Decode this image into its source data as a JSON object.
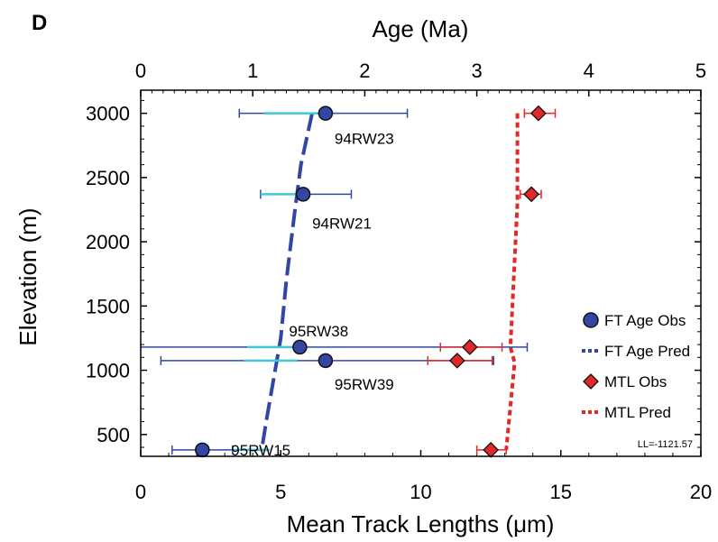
{
  "chart_data": {
    "type": "scatter",
    "panel_label": "D",
    "top_axis": {
      "label": "Age (Ma)",
      "range": [
        0,
        5
      ],
      "ticks": [
        0,
        1,
        2,
        3,
        4,
        5
      ]
    },
    "bottom_axis": {
      "label": "Mean Track Lengths (μm)",
      "range": [
        0,
        20
      ],
      "ticks": [
        0,
        5,
        10,
        15,
        20
      ]
    },
    "y_axis": {
      "label": "Elevation (m)",
      "range": [
        330,
        3180
      ],
      "ticks": [
        500,
        1000,
        1500,
        2000,
        2500,
        3000
      ]
    },
    "samples": [
      {
        "name": "94RW23",
        "elevation": 3000
      },
      {
        "name": "94RW21",
        "elevation": 2370
      },
      {
        "name": "95RW38",
        "elevation": 1180
      },
      {
        "name": "95RW39",
        "elevation": 1075
      },
      {
        "name": "95RW15",
        "elevation": 380
      }
    ],
    "series": [
      {
        "name": "FT Age Obs",
        "axis": "top",
        "color": "#3346a3",
        "marker": "circle",
        "points": [
          {
            "age": 1.65,
            "elevation": 3000,
            "err_min": 0.88,
            "err_max": 2.38,
            "inner_min": 1.1,
            "inner_max": 1.58
          },
          {
            "age": 1.45,
            "elevation": 2370,
            "err_min": 1.07,
            "err_max": 1.88,
            "inner_min": 1.07,
            "inner_max": 1.38
          },
          {
            "age": 1.42,
            "elevation": 1180,
            "err_min": 0.0,
            "err_max": 3.45,
            "inner_min": 0.95,
            "inner_max": 1.35
          },
          {
            "age": 1.65,
            "elevation": 1075,
            "err_min": 0.18,
            "err_max": 3.15,
            "inner_min": 0.92,
            "inner_max": 1.4
          },
          {
            "age": 0.55,
            "elevation": 380,
            "err_min": 0.28,
            "err_max": 0.82,
            "inner_min": 0.82,
            "inner_max": 1.15
          }
        ]
      },
      {
        "name": "FT Age Pred",
        "axis": "top",
        "color": "#3346a3",
        "style": "dashed",
        "points": [
          {
            "age": 1.53,
            "elevation": 3000
          },
          {
            "age": 1.43,
            "elevation": 2600
          },
          {
            "age": 1.37,
            "elevation": 2200
          },
          {
            "age": 1.3,
            "elevation": 1700
          },
          {
            "age": 1.25,
            "elevation": 1250
          },
          {
            "age": 1.18,
            "elevation": 900
          },
          {
            "age": 1.12,
            "elevation": 600
          },
          {
            "age": 1.08,
            "elevation": 380
          }
        ]
      },
      {
        "name": "MTL Obs",
        "axis": "bottom",
        "color": "#e02a2a",
        "marker": "diamond",
        "points": [
          {
            "mtl": 14.2,
            "elevation": 3000,
            "err_min": 13.7,
            "err_max": 14.8
          },
          {
            "mtl": 13.95,
            "elevation": 2370,
            "err_min": 13.55,
            "err_max": 14.3
          },
          {
            "mtl": 11.75,
            "elevation": 1180,
            "err_min": 10.7,
            "err_max": 12.9
          },
          {
            "mtl": 11.3,
            "elevation": 1075,
            "err_min": 10.25,
            "err_max": 12.55
          },
          {
            "mtl": 12.5,
            "elevation": 380,
            "err_min": 12.0,
            "err_max": 13.05
          }
        ]
      },
      {
        "name": "MTL Pred",
        "axis": "bottom",
        "color": "#e02a2a",
        "style": "dotted",
        "points": [
          {
            "mtl": 13.45,
            "elevation": 3000
          },
          {
            "mtl": 13.45,
            "elevation": 2300
          },
          {
            "mtl": 13.2,
            "elevation": 1180
          },
          {
            "mtl": 13.35,
            "elevation": 1060
          },
          {
            "mtl": 13.05,
            "elevation": 380
          }
        ]
      }
    ],
    "legend": {
      "placement": "right",
      "items": [
        {
          "label": "FT Age Obs",
          "symbol": "circle",
          "color": "#3346a3"
        },
        {
          "label": "FT Age Pred",
          "symbol": "dash",
          "color": "#3346a3"
        },
        {
          "label": "MTL Obs",
          "symbol": "diamond",
          "color": "#e02a2a"
        },
        {
          "label": "MTL Pred",
          "symbol": "dash",
          "color": "#e02a2a"
        }
      ]
    },
    "annotation": "LL=-1121.57",
    "colors": {
      "error_bar_outer": "#3346a3",
      "error_bar_inner": "#40c8d8",
      "mtl_error": "#e02a2a"
    }
  }
}
